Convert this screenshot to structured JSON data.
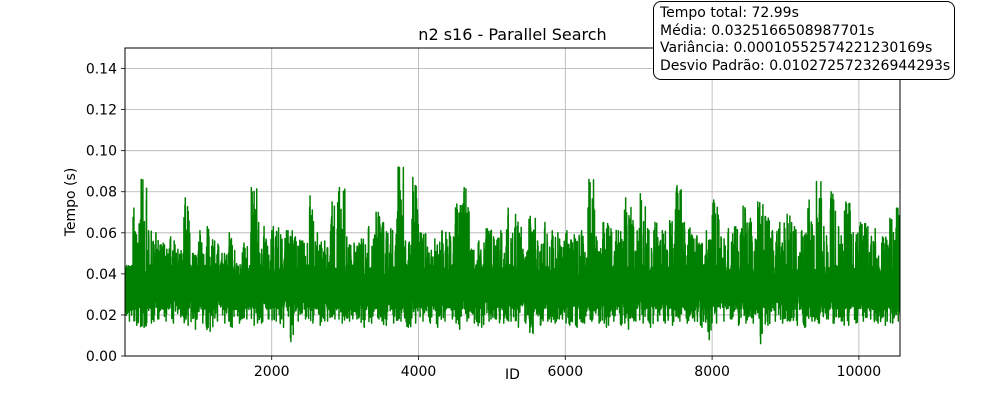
{
  "chart_data": {
    "type": "line",
    "title": "n2 s16 - Parallel Search",
    "xlabel": "ID",
    "ylabel": "Tempo (s)",
    "xlim": [
      1,
      10560
    ],
    "ylim": [
      0.0,
      0.15
    ],
    "x_ticks": [
      2000,
      4000,
      6000,
      8000,
      10000
    ],
    "x_tick_labels": [
      "2000",
      "4000",
      "6000",
      "8000",
      "10000"
    ],
    "y_ticks": [
      0.0,
      0.02,
      0.04,
      0.06,
      0.08,
      0.1,
      0.12,
      0.14
    ],
    "y_tick_labels": [
      "0.00",
      "0.02",
      "0.04",
      "0.06",
      "0.08",
      "0.10",
      "0.12",
      "0.14"
    ],
    "grid": true,
    "line_color": "#008000",
    "series": [
      {
        "x": [
          1,
          100,
          200,
          300,
          400,
          500,
          600,
          700,
          800,
          900,
          1000,
          1100,
          1200,
          1300,
          1400,
          1500,
          1600,
          1700,
          1800,
          1900,
          2000,
          2100,
          2200,
          2300,
          2400,
          2500,
          2600,
          2700,
          2800,
          2900,
          3000,
          3100,
          3200,
          3300,
          3400,
          3500,
          3600,
          3700,
          3800,
          3900,
          4000,
          4100,
          4200,
          4300,
          4400,
          4500,
          4600,
          4700,
          4800,
          4900,
          5000,
          5100,
          5200,
          5300,
          5400,
          5500,
          5600,
          5700,
          5800,
          5900,
          6000,
          6100,
          6200,
          6300,
          6400,
          6500,
          6600,
          6700,
          6800,
          6900,
          7000,
          7100,
          7200,
          7300,
          7400,
          7500,
          7600,
          7700,
          7800,
          7900,
          8000,
          8100,
          8200,
          8300,
          8400,
          8500,
          8600,
          8700,
          8800,
          8900,
          9000,
          9100,
          9200,
          9300,
          9400,
          9500,
          9600,
          9700,
          9800,
          9900,
          10000,
          10100,
          10200,
          10300,
          10400,
          10500,
          10560
        ],
        "min": [
          0.017,
          0.015,
          0.014,
          0.016,
          0.018,
          0.017,
          0.016,
          0.019,
          0.015,
          0.013,
          0.016,
          0.012,
          0.017,
          0.016,
          0.014,
          0.016,
          0.018,
          0.015,
          0.016,
          0.018,
          0.017,
          0.014,
          0.007,
          0.017,
          0.018,
          0.016,
          0.015,
          0.017,
          0.018,
          0.016,
          0.017,
          0.018,
          0.014,
          0.016,
          0.018,
          0.015,
          0.016,
          0.017,
          0.014,
          0.016,
          0.017,
          0.016,
          0.014,
          0.017,
          0.018,
          0.013,
          0.017,
          0.016,
          0.014,
          0.017,
          0.018,
          0.016,
          0.017,
          0.014,
          0.016,
          0.011,
          0.015,
          0.017,
          0.016,
          0.018,
          0.015,
          0.014,
          0.016,
          0.017,
          0.016,
          0.014,
          0.017,
          0.015,
          0.013,
          0.017,
          0.016,
          0.014,
          0.017,
          0.016,
          0.015,
          0.017,
          0.016,
          0.017,
          0.014,
          0.008,
          0.016,
          0.017,
          0.018,
          0.015,
          0.016,
          0.016,
          0.006,
          0.015,
          0.017,
          0.016,
          0.017,
          0.015,
          0.014,
          0.017,
          0.016,
          0.018,
          0.016,
          0.017,
          0.015,
          0.016,
          0.017,
          0.018,
          0.016,
          0.015,
          0.016,
          0.017,
          0.018
        ],
        "max": [
          0.044,
          0.072,
          0.086,
          0.061,
          0.06,
          0.055,
          0.058,
          0.052,
          0.077,
          0.05,
          0.061,
          0.063,
          0.056,
          0.05,
          0.06,
          0.045,
          0.055,
          0.082,
          0.065,
          0.057,
          0.063,
          0.059,
          0.061,
          0.058,
          0.056,
          0.078,
          0.06,
          0.056,
          0.075,
          0.082,
          0.058,
          0.055,
          0.057,
          0.063,
          0.07,
          0.065,
          0.062,
          0.092,
          0.056,
          0.087,
          0.06,
          0.053,
          0.057,
          0.061,
          0.06,
          0.074,
          0.082,
          0.052,
          0.056,
          0.062,
          0.058,
          0.061,
          0.072,
          0.069,
          0.052,
          0.068,
          0.056,
          0.065,
          0.061,
          0.057,
          0.061,
          0.059,
          0.061,
          0.086,
          0.058,
          0.065,
          0.062,
          0.061,
          0.077,
          0.066,
          0.079,
          0.062,
          0.065,
          0.061,
          0.066,
          0.083,
          0.065,
          0.059,
          0.055,
          0.061,
          0.076,
          0.058,
          0.062,
          0.063,
          0.073,
          0.067,
          0.075,
          0.068,
          0.061,
          0.065,
          0.069,
          0.063,
          0.061,
          0.076,
          0.085,
          0.063,
          0.08,
          0.063,
          0.075,
          0.06,
          0.065,
          0.063,
          0.062,
          0.058,
          0.067,
          0.072,
          0.069
        ],
        "mean": 0.0325
      }
    ],
    "annotation": {
      "location": "top-right",
      "lines": [
        "Tempo total: 72.99s",
        "Média: 0.0325166508987701s",
        "Variância: 0.00010552574221230169s",
        "Desvio Padrão: 0.010272572326944293s"
      ]
    }
  }
}
